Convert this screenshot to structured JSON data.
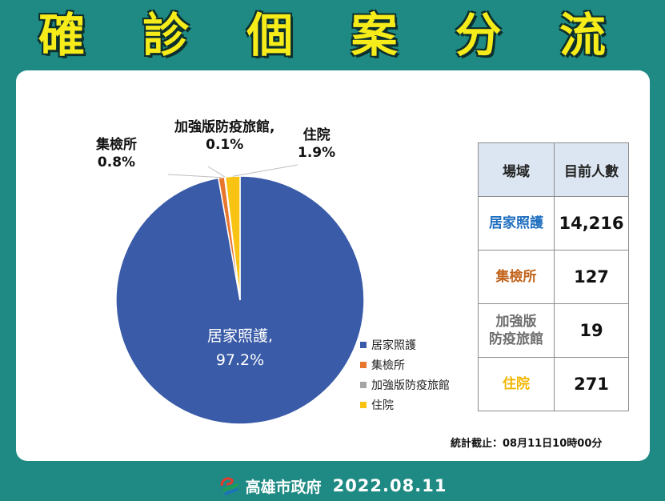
{
  "title": "確 診 個 案 分 流",
  "colors": {
    "home": "#3a5ba8",
    "center": "#e8772e",
    "hotel": "#a5a5a5",
    "hospital": "#f9c313"
  },
  "chart_data": {
    "type": "pie",
    "slices": [
      {
        "label": "居家照護",
        "value": 97.2,
        "display": "97.2%",
        "color": "#3a5ba8"
      },
      {
        "label": "集檢所",
        "value": 0.8,
        "display": "0.8%",
        "color": "#e8772e"
      },
      {
        "label": "加強版防疫旅館",
        "value": 0.1,
        "display": "0.1%",
        "color": "#a5a5a5"
      },
      {
        "label": "住院",
        "value": 1.9,
        "display": "1.9%",
        "color": "#f9c313"
      }
    ],
    "legend": [
      "居家照護",
      "集檢所",
      "加強版防疫旅館",
      "住院"
    ],
    "legend_position": "right"
  },
  "labels": {
    "home_name": "居家照護,",
    "home_pct": "97.2%",
    "center_name": "集檢所",
    "center_pct": "0.8%",
    "hotel_name": "加強版防疫旅館,",
    "hotel_pct": "0.1%",
    "hospital_name": "住院",
    "hospital_pct": "1.9%"
  },
  "table": {
    "header_place": "場域",
    "header_count": "目前人數",
    "rows": [
      {
        "name": "居家照護",
        "count": "14,216",
        "color": "#1f6fc0"
      },
      {
        "name": "集檢所",
        "count": "127",
        "color": "#c2631b"
      },
      {
        "name": "加強版防疫旅館",
        "name_line1": "加強版",
        "name_line2": "防疫旅館",
        "count": "19",
        "color": "#6d6d6d"
      },
      {
        "name": "住院",
        "count": "271",
        "color": "#f2b705"
      }
    ]
  },
  "footnote": "統計截止：08月11日10時00分",
  "footer": {
    "org": "高雄市政府",
    "date": "2022.08.11"
  }
}
